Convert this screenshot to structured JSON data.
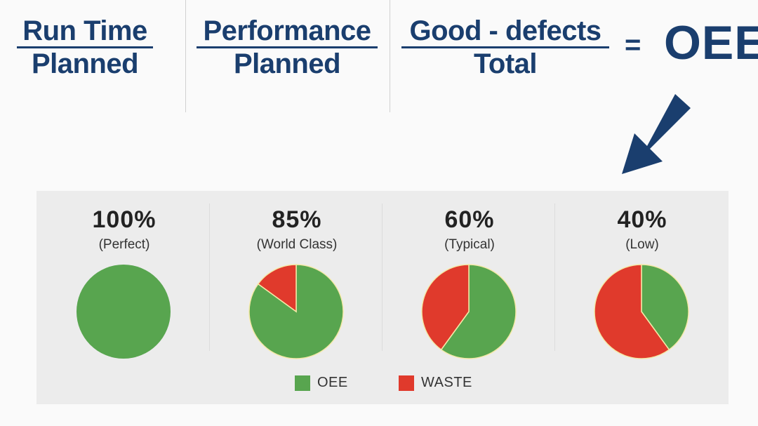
{
  "formula": {
    "runtime": {
      "numerator": "Run Time",
      "denominator": "Planned"
    },
    "performance": {
      "numerator": "Performance",
      "denominator": "Planned"
    },
    "quality": {
      "numerator": "Good - defects",
      "denominator": "Total"
    },
    "equals": "=",
    "result": "OEE"
  },
  "arrow_icon": "arrow-down-left-icon",
  "colors": {
    "oee": "#58a54f",
    "waste": "#e03a2c",
    "text_blue": "#1a3e6e"
  },
  "chart_data": {
    "type": "pie",
    "legend": {
      "placement": "bottom-center",
      "entries": [
        "OEE",
        "WASTE"
      ]
    },
    "charts": [
      {
        "label": "100%",
        "sublabel": "(Perfect)",
        "slices": [
          {
            "name": "OEE",
            "value": 100
          },
          {
            "name": "WASTE",
            "value": 0
          }
        ]
      },
      {
        "label": "85%",
        "sublabel": "(World Class)",
        "slices": [
          {
            "name": "OEE",
            "value": 85
          },
          {
            "name": "WASTE",
            "value": 15
          }
        ]
      },
      {
        "label": "60%",
        "sublabel": "(Typical)",
        "slices": [
          {
            "name": "OEE",
            "value": 60
          },
          {
            "name": "WASTE",
            "value": 40
          }
        ]
      },
      {
        "label": "40%",
        "sublabel": "(Low)",
        "slices": [
          {
            "name": "OEE",
            "value": 40
          },
          {
            "name": "WASTE",
            "value": 60
          }
        ]
      }
    ]
  }
}
